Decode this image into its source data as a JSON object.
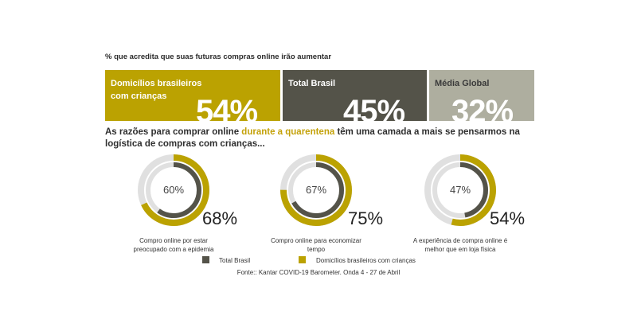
{
  "colors": {
    "kids": "#bba201",
    "brasil": "#545349",
    "global": "#aeae9f",
    "track": "#e0e0e0",
    "highlight": "#c4a20a"
  },
  "top_caption": "% que acredita que suas futuras compras online irão aumentar",
  "stat_boxes": [
    {
      "label": "Domicílios brasileiros com crianças",
      "value": "54%"
    },
    {
      "label": "Total Brasil",
      "value": "45%"
    },
    {
      "label": "Média Global",
      "value": "32%"
    }
  ],
  "headline": {
    "part1": "As razões para comprar online ",
    "highlight": "durante a quarentena",
    "part2": " têm uma camada a mais se pensarmos na logística de compras com crianças..."
  },
  "chart_data": {
    "type": "donut",
    "series": [
      {
        "name": "Total Brasil",
        "values": [
          60,
          67,
          47
        ]
      },
      {
        "name": "Domicílios brasileiros com crianças",
        "values": [
          68,
          75,
          54
        ]
      }
    ],
    "categories": [
      "Compro online por estar preocupado com a epidemia",
      "Compro online para economizar tempo",
      "A experiência de compra online é melhor que em loja física"
    ],
    "value_labels": {
      "inner": [
        "60%",
        "67%",
        "47%"
      ],
      "outer": [
        "68%",
        "75%",
        "54%"
      ]
    },
    "legend": [
      "Total Brasil",
      "Domicílios brasileiros com crianças"
    ]
  },
  "source": "Fonte:: Kantar COVID-19 Barometer. Onda 4 - 27 de Abril"
}
